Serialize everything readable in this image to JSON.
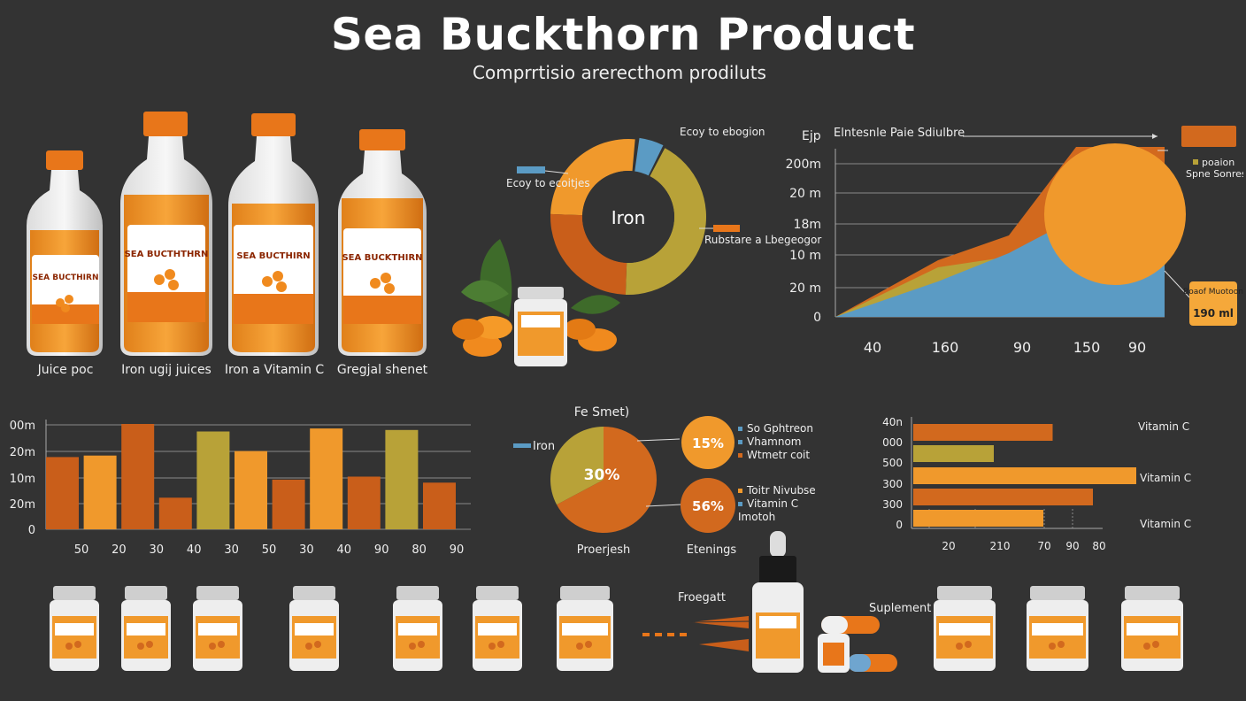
{
  "title": "Sea Buckthorn Product",
  "subtitle": "Comprrtisio arerecthom prodiluts",
  "colors": {
    "background": "#333333",
    "orange": "#F0992C",
    "dark_orange": "#D2691E",
    "olive": "#B8A238",
    "blue": "#5B9BC4",
    "burnt": "#C95E1A"
  },
  "bottles": [
    {
      "label": "Juice poc",
      "brand": "SEA BUCTHIRN"
    },
    {
      "label": "Iron ugij juices",
      "brand": "SEA BUCTHTHRN"
    },
    {
      "label": "Iron a Vitamin C",
      "brand": "SEA BUCTHIRN"
    },
    {
      "label": "Gregjal shenet",
      "brand": "SEA BUCKTHIRN"
    }
  ],
  "donut": {
    "center": "Iron",
    "labels": [
      "Ecoy to ebogion",
      "Ecoy to ecoitjes",
      "Rubstare a Lbegeogor"
    ]
  },
  "pie": {
    "title": "Fe Smet)",
    "left_label": "Iron",
    "slice_label": "30%",
    "caption_left": "Proerjesh",
    "caption_right": "Etenings",
    "bubbles": [
      {
        "value": "15%",
        "legend": [
          "So Gphtreon",
          "Vhamnom",
          "Wtmetr coit"
        ]
      },
      {
        "value": "56%",
        "legend": [
          "Toitr Nivubse",
          "Vitamin C",
          "Imotoh"
        ]
      }
    ]
  },
  "labels_bottom": {
    "frogatt": "Froegatt",
    "supplement": "Suplement"
  },
  "chart_data": [
    {
      "type": "area",
      "title": "Elntesnle Paie Sdiulbre",
      "ylabel": "Ejp",
      "y_tick_labels": [
        "0",
        "20 m",
        "10 m",
        "18m",
        "20 m",
        "200m"
      ],
      "x_tick_labels": [
        "40",
        "160",
        "90",
        "150",
        "90"
      ],
      "series": [
        {
          "values": [
            0,
            1.6,
            2.3,
            4.8,
            4.8
          ]
        },
        {
          "values": [
            0,
            1.0,
            1.8,
            2.8,
            3.2
          ]
        },
        {
          "values": [
            0,
            1.4,
            1.7,
            2.5,
            3.8
          ]
        }
      ],
      "ylim": [
        0,
        5
      ],
      "annotations": [
        {
          "text": "poaion"
        },
        {
          "text": "Spne Sonres"
        },
        {
          "text": "Boaof Muotoon"
        },
        {
          "text": "190 ml"
        }
      ]
    },
    {
      "type": "bar",
      "y_tick_labels": [
        "0",
        "20m",
        "10m",
        "20m",
        "00m"
      ],
      "x_tick_labels": [
        "50",
        "20",
        "30",
        "40",
        "30",
        "50",
        "30",
        "40",
        "90",
        "80",
        "90"
      ],
      "values": [
        2.4,
        2.45,
        3.5,
        1.05,
        3.25,
        2.6,
        1.65,
        3.35,
        1.75,
        3.3,
        1.55
      ],
      "ylim": [
        0,
        4
      ]
    },
    {
      "type": "bar",
      "orientation": "horizontal",
      "y_tick_labels": [
        "0",
        "300",
        "300",
        "500",
        "000",
        "40n"
      ],
      "x_tick_labels": [
        "20",
        "210",
        "70",
        "90",
        "80"
      ],
      "values": [
        4.5,
        2.6,
        7.2,
        5.8,
        4.2
      ],
      "xlim": [
        0,
        7.2
      ],
      "right_labels": [
        "Vitamin C",
        "Vitamin C",
        "Vitamin C"
      ]
    }
  ]
}
